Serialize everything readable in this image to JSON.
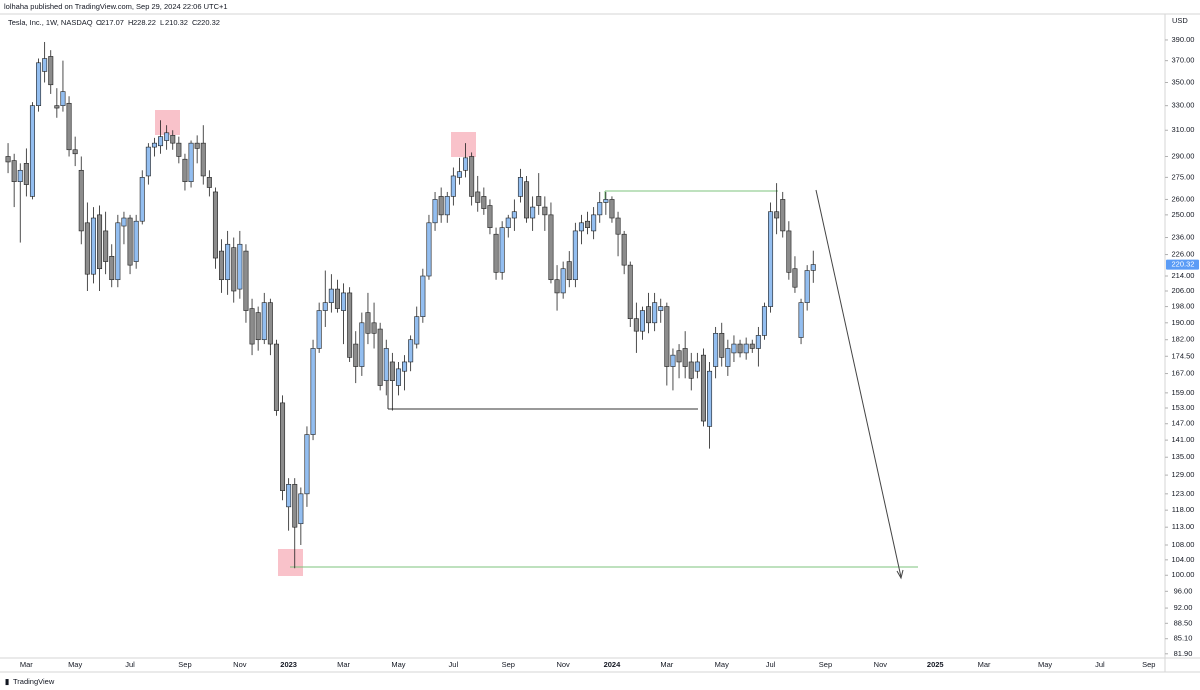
{
  "header": {
    "published": "lolhaha published on TradingView.com, Sep 29, 2024 22:06 UTC+1",
    "footer": "TradingView"
  },
  "chart_data": {
    "type": "candlestick",
    "symbol": "Tesla, Inc., 1W, NASDAQ",
    "ohlc_keys": [
      "O",
      "H",
      "L",
      "C"
    ],
    "y_label": "USD",
    "log_scale": true,
    "grid": false,
    "up_color": "#93bef0",
    "down_color": "#8c8c8c",
    "edge_color": "#1f1f1f",
    "ylim": [
      79.6,
      416.6
    ],
    "yticks": [
      {
        "value": 390,
        "label": "390.00"
      },
      {
        "value": 370,
        "label": "370.00"
      },
      {
        "value": 350,
        "label": "350.00"
      },
      {
        "value": 330,
        "label": "330.00"
      },
      {
        "value": 310,
        "label": "310.00"
      },
      {
        "value": 290,
        "label": "290.00"
      },
      {
        "value": 275,
        "label": "275.00"
      },
      {
        "value": 260,
        "label": "260.00"
      },
      {
        "value": 250,
        "label": "250.00"
      },
      {
        "value": 236,
        "label": "236.00"
      },
      {
        "value": 226,
        "label": "226.00"
      },
      {
        "value": 214,
        "label": "214.00"
      },
      {
        "value": 206,
        "label": "206.00"
      },
      {
        "value": 198,
        "label": "198.00"
      },
      {
        "value": 190,
        "label": "190.00"
      },
      {
        "value": 182,
        "label": "182.00"
      },
      {
        "value": 174.5,
        "label": "174.50"
      },
      {
        "value": 167,
        "label": "167.00"
      },
      {
        "value": 159,
        "label": "159.00"
      },
      {
        "value": 153,
        "label": "153.00"
      },
      {
        "value": 147,
        "label": "147.00"
      },
      {
        "value": 141,
        "label": "141.00"
      },
      {
        "value": 135,
        "label": "135.00"
      },
      {
        "value": 129,
        "label": "129.00"
      },
      {
        "value": 123,
        "label": "123.00"
      },
      {
        "value": 118,
        "label": "118.00"
      },
      {
        "value": 113,
        "label": "113.00"
      },
      {
        "value": 108,
        "label": "108.00"
      },
      {
        "value": 104,
        "label": "104.00"
      },
      {
        "value": 100,
        "label": "100.00"
      },
      {
        "value": 96,
        "label": "96.00"
      },
      {
        "value": 92,
        "label": "92.00"
      },
      {
        "value": 88.5,
        "label": "88.50"
      },
      {
        "value": 85.1,
        "label": "85.10"
      },
      {
        "value": 81.9,
        "label": "81.90"
      }
    ],
    "categories": [
      null,
      null,
      null,
      "Mar",
      null,
      null,
      null,
      null,
      null,
      null,
      null,
      "May",
      null,
      null,
      null,
      null,
      null,
      null,
      null,
      null,
      "Jul",
      null,
      null,
      null,
      null,
      null,
      null,
      null,
      null,
      "Sep",
      null,
      null,
      null,
      null,
      null,
      null,
      null,
      null,
      "Nov",
      null,
      null,
      null,
      null,
      null,
      null,
      null,
      "2023",
      null,
      null,
      null,
      null,
      null,
      null,
      null,
      null,
      "Mar",
      null,
      null,
      null,
      null,
      null,
      null,
      null,
      null,
      "May",
      null,
      null,
      null,
      null,
      null,
      null,
      null,
      null,
      "Jul",
      null,
      null,
      null,
      null,
      null,
      null,
      null,
      null,
      "Sep",
      null,
      null,
      null,
      null,
      null,
      null,
      null,
      null,
      "Nov",
      null,
      null,
      null,
      null,
      null,
      null,
      null,
      "2024",
      null,
      null,
      null,
      null,
      null,
      null,
      null,
      null,
      "Mar",
      null,
      null,
      null,
      null,
      null,
      null,
      null,
      null,
      "May",
      null,
      null,
      null,
      null,
      null,
      null,
      null,
      "Jul",
      null,
      null,
      null,
      null,
      null,
      null,
      null,
      null,
      "Sep",
      null,
      null,
      null,
      null,
      null,
      null,
      null,
      null,
      "Nov",
      null,
      null,
      null,
      null,
      null,
      null,
      null,
      null,
      "2025",
      null,
      null,
      null,
      null,
      null,
      null,
      null,
      "Mar",
      null,
      null,
      null,
      null,
      null,
      null,
      null,
      null,
      null,
      "May",
      null,
      null,
      null,
      null,
      null,
      null,
      null,
      null,
      "Jul",
      null,
      null,
      null,
      null,
      null,
      null,
      null,
      "Sep",
      null,
      null
    ],
    "open": [
      290,
      287,
      272,
      285,
      262,
      330,
      360,
      374,
      330,
      330,
      332,
      295,
      280,
      245,
      215,
      250,
      240,
      225,
      212,
      243,
      248,
      222,
      246,
      276,
      297,
      298,
      302,
      306,
      300,
      288,
      272,
      300,
      300,
      275,
      265,
      228,
      212,
      230,
      207,
      228,
      197,
      195,
      182,
      200,
      180,
      155,
      119,
      126,
      114,
      123,
      143,
      178,
      196,
      200,
      207,
      196,
      205,
      180,
      170,
      195,
      190,
      187,
      164,
      172,
      162,
      168,
      172,
      180,
      193,
      214,
      245,
      262,
      250,
      262,
      275,
      280,
      290,
      265,
      262,
      256,
      238,
      216,
      242,
      248,
      262,
      272,
      248,
      262,
      255,
      250,
      212,
      205,
      222,
      212,
      240,
      246,
      240,
      250,
      258,
      260,
      248,
      238,
      220,
      192,
      186,
      198,
      190,
      196,
      198,
      170,
      177,
      178,
      172,
      168,
      175,
      146,
      170,
      185,
      170,
      176,
      180,
      176,
      180,
      178,
      184,
      198,
      252,
      260,
      240,
      218,
      183,
      200,
      217.07,
      null,
      null,
      null,
      null,
      null,
      null,
      null,
      null,
      null,
      null,
      null,
      null,
      null,
      null,
      null,
      null,
      null,
      null,
      null,
      null,
      null,
      null,
      null,
      null,
      null,
      null,
      null,
      null,
      null,
      null,
      null,
      null,
      null,
      null,
      null,
      null,
      null,
      null,
      null,
      null,
      null,
      null,
      null,
      null,
      null,
      null,
      null,
      null,
      null,
      null,
      null,
      null,
      null,
      null,
      null,
      null,
      null
    ],
    "high": [
      300,
      292,
      285,
      296,
      333,
      372,
      388,
      380,
      345,
      370,
      338,
      305,
      290,
      258,
      255,
      256,
      252,
      232,
      250,
      252,
      250,
      250,
      280,
      300,
      304,
      318,
      314,
      310,
      305,
      292,
      302,
      306,
      314,
      280,
      268,
      235,
      240,
      236,
      240,
      232,
      202,
      198,
      205,
      202,
      182,
      158,
      128,
      128,
      125,
      146,
      182,
      200,
      217,
      215,
      212,
      210,
      208,
      186,
      195,
      205,
      200,
      190,
      182,
      176,
      172,
      175,
      184,
      198,
      218,
      250,
      265,
      268,
      265,
      282,
      289,
      300,
      293,
      276,
      268,
      260,
      242,
      246,
      250,
      260,
      281,
      276,
      262,
      278,
      262,
      258,
      220,
      222,
      228,
      245,
      250,
      252,
      255,
      265,
      265,
      262,
      252,
      240,
      222,
      200,
      198,
      205,
      205,
      202,
      200,
      178,
      180,
      186,
      176,
      176,
      178,
      172,
      188,
      190,
      182,
      184,
      182,
      183,
      182,
      188,
      200,
      258,
      271,
      265,
      246,
      225,
      202,
      220,
      228.22,
      null,
      null,
      null,
      null,
      null,
      null,
      null,
      null,
      null,
      null,
      null,
      null,
      null,
      null,
      null,
      null,
      null,
      null,
      null,
      null,
      null,
      null,
      null,
      null,
      null,
      null,
      null,
      null,
      null,
      null,
      null,
      null,
      null,
      null,
      null,
      null,
      null,
      null,
      null,
      null,
      null,
      null,
      null,
      null,
      null,
      null,
      null,
      null,
      null,
      null,
      null,
      null,
      null,
      null,
      null,
      null,
      null
    ],
    "low": [
      278,
      255,
      233,
      262,
      260,
      325,
      350,
      340,
      320,
      325,
      290,
      283,
      232,
      206,
      210,
      206,
      215,
      208,
      208,
      232,
      215,
      218,
      244,
      270,
      290,
      292,
      295,
      295,
      285,
      266,
      268,
      285,
      270,
      262,
      218,
      205,
      204,
      200,
      202,
      190,
      175,
      177,
      180,
      175,
      150,
      121,
      112,
      101.8,
      108,
      119,
      141,
      176,
      188,
      195,
      195,
      180,
      172,
      163,
      166,
      180,
      178,
      160,
      158,
      152,
      158,
      160,
      168,
      178,
      190,
      212,
      240,
      245,
      245,
      256,
      270,
      275,
      256,
      252,
      250,
      238,
      212,
      212,
      236,
      240,
      258,
      245,
      240,
      250,
      240,
      210,
      196,
      202,
      208,
      208,
      232,
      238,
      235,
      245,
      250,
      245,
      225,
      215,
      188,
      176,
      182,
      185,
      186,
      190,
      162,
      160,
      165,
      165,
      160,
      165,
      146,
      138,
      165,
      170,
      166,
      172,
      174,
      173,
      176,
      170,
      182,
      195,
      238,
      236,
      212,
      205,
      180,
      196,
      210.32,
      null,
      null,
      null,
      null,
      null,
      null,
      null,
      null,
      null,
      null,
      null,
      null,
      null,
      null,
      null,
      null,
      null,
      null,
      null,
      null,
      null,
      null,
      null,
      null,
      null,
      null,
      null,
      null,
      null,
      null,
      null,
      null,
      null,
      null,
      null,
      null,
      null,
      null,
      null,
      null,
      null,
      null,
      null,
      null,
      null,
      null,
      null,
      null,
      null,
      null,
      null,
      null,
      null,
      null,
      null,
      null,
      null
    ],
    "close": [
      286,
      272,
      280,
      270,
      330,
      368,
      372,
      348,
      328,
      342,
      295,
      292,
      240,
      215,
      248,
      218,
      222,
      212,
      245,
      248,
      220,
      246,
      275,
      297,
      300,
      305,
      308,
      300,
      290,
      272,
      300,
      296,
      276,
      268,
      224,
      212,
      232,
      206,
      232,
      196,
      180,
      182,
      200,
      180,
      152,
      124,
      126,
      113,
      123,
      143,
      178,
      196,
      200,
      207,
      197,
      205,
      174,
      170,
      190,
      185,
      185,
      162,
      178,
      164,
      169,
      172,
      182,
      193,
      214,
      245,
      260,
      250,
      262,
      276,
      279,
      289,
      262,
      258,
      254,
      242,
      216,
      242,
      248,
      252,
      275,
      248,
      255,
      256,
      250,
      212,
      205,
      218,
      212,
      240,
      245,
      242,
      250,
      258,
      260,
      248,
      238,
      220,
      192,
      186,
      196,
      190,
      200,
      198,
      170,
      175,
      172,
      170,
      165,
      172,
      148,
      168,
      185,
      174,
      178,
      180,
      176,
      180,
      178,
      184,
      198,
      252,
      248,
      240,
      216,
      208,
      200,
      217,
      220.32,
      null,
      null,
      null,
      null,
      null,
      null,
      null,
      null,
      null,
      null,
      null,
      null,
      null,
      null,
      null,
      null,
      null,
      null,
      null,
      null,
      null,
      null,
      null,
      null,
      null,
      null,
      null,
      null,
      null,
      null,
      null,
      null,
      null,
      null,
      null,
      null,
      null,
      null,
      null,
      null,
      null,
      null,
      null,
      null,
      null,
      null,
      null,
      null,
      null,
      null,
      null,
      null,
      null,
      null,
      null,
      null,
      null
    ]
  }
}
